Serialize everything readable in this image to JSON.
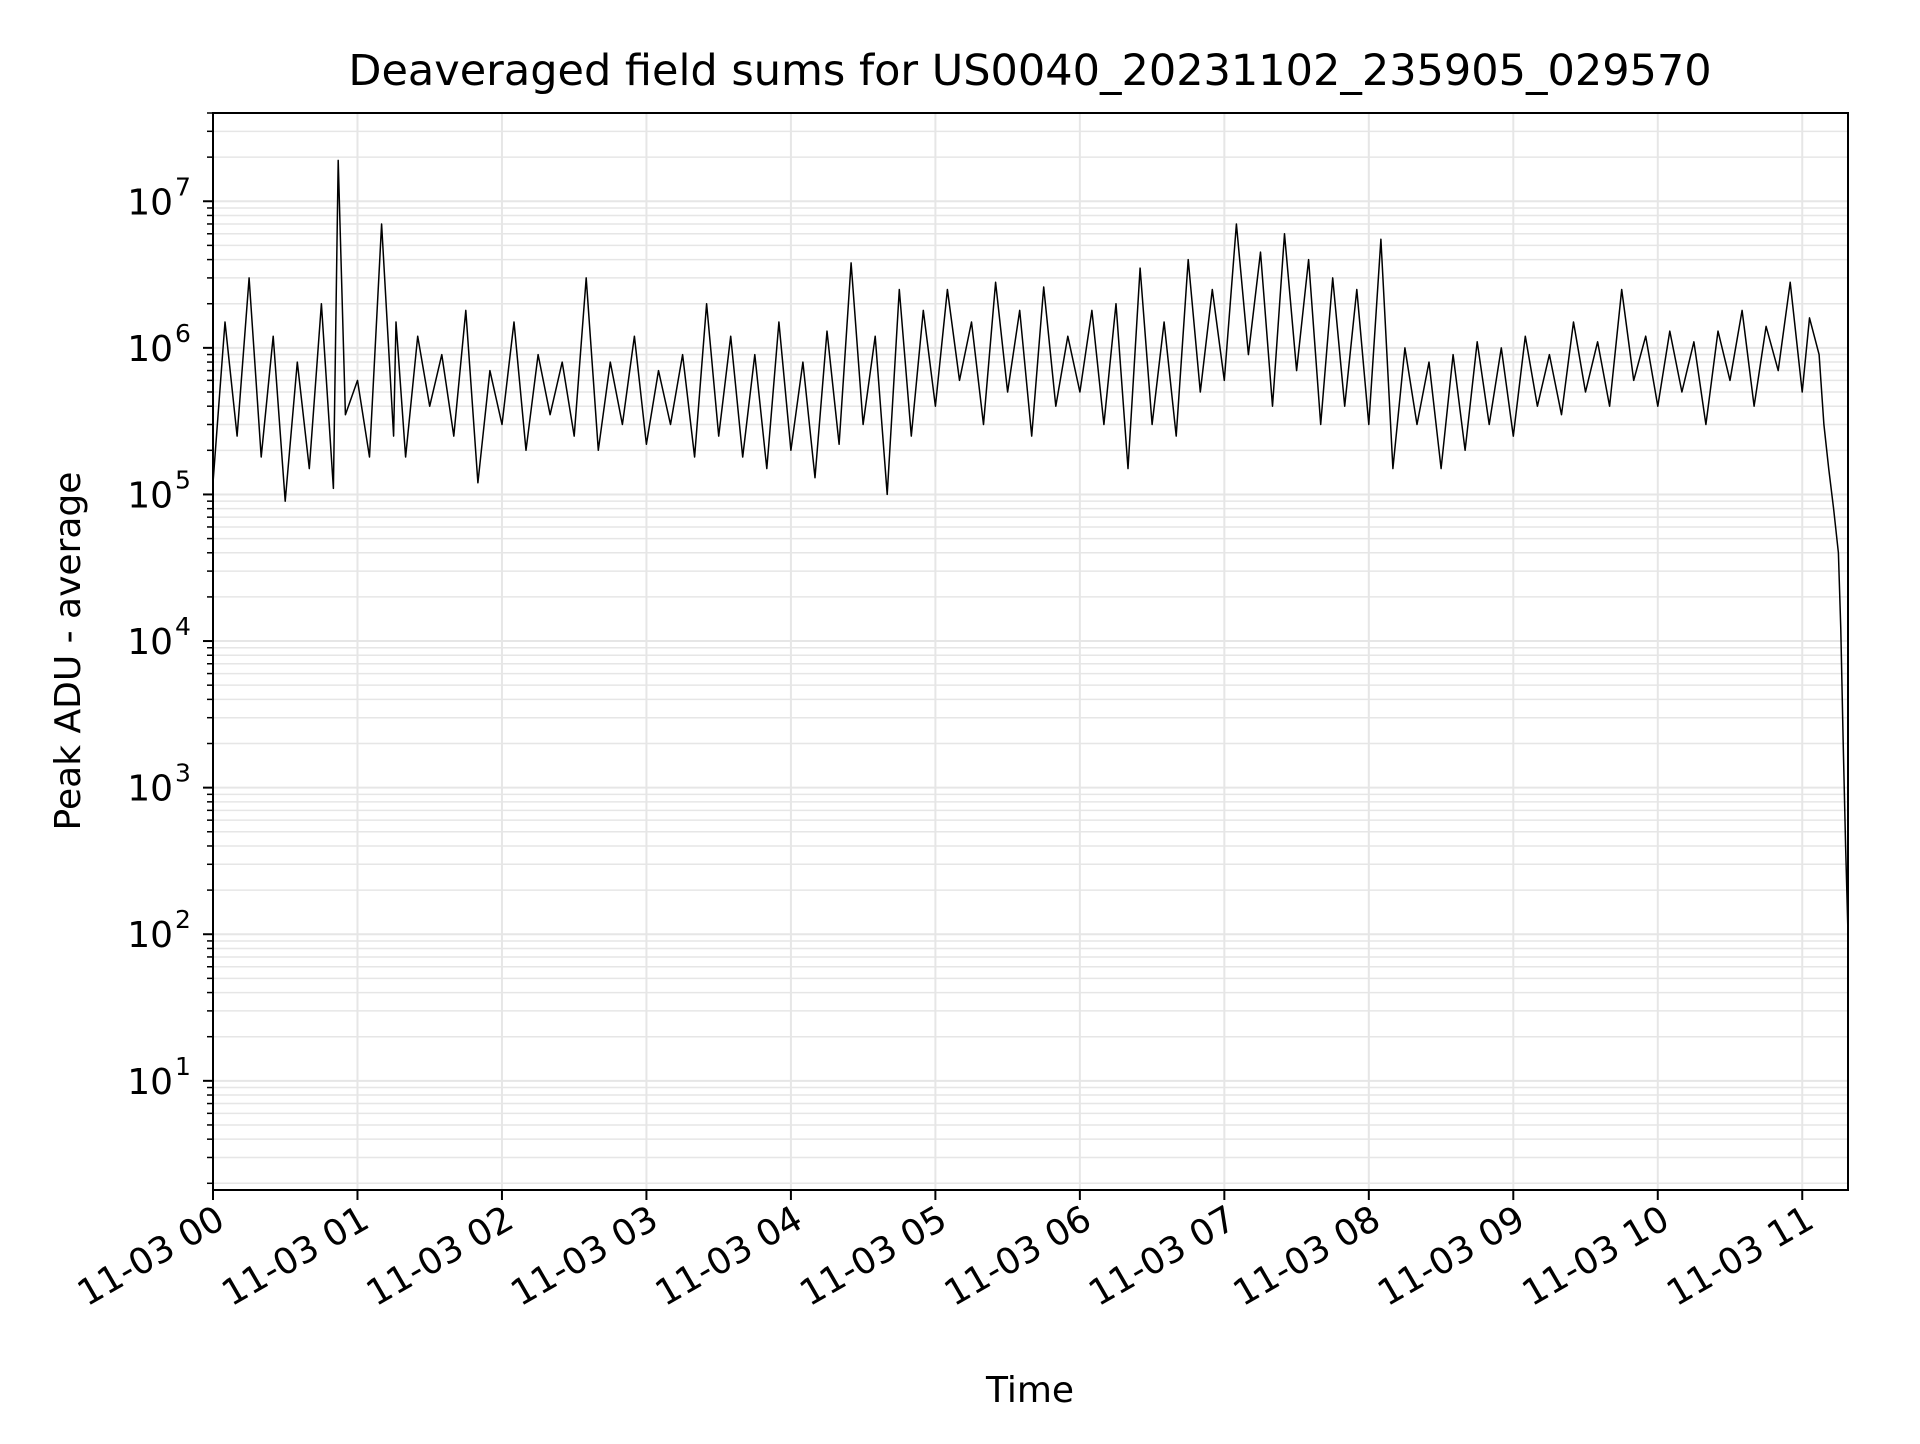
{
  "chart_data": {
    "type": "line",
    "title": "Deaveraged field sums for US0040_20231102_235905_029570",
    "xlabel": "Time",
    "ylabel": "Peak ADU - average",
    "yscale": "log",
    "ylim": [
      1.8,
      40000000
    ],
    "xlim": [
      "2023-11-03 00:00",
      "2023-11-03 11:19"
    ],
    "grid": true,
    "line_color": "#000000",
    "grid_color": "#e6e6e6",
    "x_ticks": [
      {
        "at": "2023-11-03 00:00",
        "label": "11-03 00"
      },
      {
        "at": "2023-11-03 01:00",
        "label": "11-03 01"
      },
      {
        "at": "2023-11-03 02:00",
        "label": "11-03 02"
      },
      {
        "at": "2023-11-03 03:00",
        "label": "11-03 03"
      },
      {
        "at": "2023-11-03 04:00",
        "label": "11-03 04"
      },
      {
        "at": "2023-11-03 05:00",
        "label": "11-03 05"
      },
      {
        "at": "2023-11-03 06:00",
        "label": "11-03 06"
      },
      {
        "at": "2023-11-03 07:00",
        "label": "11-03 07"
      },
      {
        "at": "2023-11-03 08:00",
        "label": "11-03 08"
      },
      {
        "at": "2023-11-03 09:00",
        "label": "11-03 09"
      },
      {
        "at": "2023-11-03 10:00",
        "label": "11-03 10"
      },
      {
        "at": "2023-11-03 11:00",
        "label": "11-03 11"
      }
    ],
    "y_ticks": [
      {
        "value": 10,
        "base": "10",
        "exp": "1"
      },
      {
        "value": 100,
        "base": "10",
        "exp": "2"
      },
      {
        "value": 1000,
        "base": "10",
        "exp": "3"
      },
      {
        "value": 10000,
        "base": "10",
        "exp": "4"
      },
      {
        "value": 100000,
        "base": "10",
        "exp": "5"
      },
      {
        "value": 1000000,
        "base": "10",
        "exp": "6"
      },
      {
        "value": 10000000,
        "base": "10",
        "exp": "7"
      }
    ],
    "series": [
      {
        "x": [
          "00:00",
          "00:05",
          "00:10",
          "00:15",
          "00:20",
          "00:25",
          "00:30",
          "00:35",
          "00:40",
          "00:45",
          "00:50",
          "00:52",
          "00:55",
          "01:00",
          "01:05",
          "01:10",
          "01:15",
          "01:16",
          "01:20",
          "01:25",
          "01:30",
          "01:35",
          "01:40",
          "01:45",
          "01:50",
          "01:55",
          "02:00",
          "02:05",
          "02:10",
          "02:15",
          "02:20",
          "02:25",
          "02:30",
          "02:35",
          "02:40",
          "02:45",
          "02:50",
          "02:55",
          "03:00",
          "03:05",
          "03:10",
          "03:15",
          "03:20",
          "03:25",
          "03:30",
          "03:35",
          "03:40",
          "03:45",
          "03:50",
          "03:55",
          "04:00",
          "04:05",
          "04:10",
          "04:15",
          "04:20",
          "04:25",
          "04:30",
          "04:35",
          "04:40",
          "04:45",
          "04:50",
          "04:55",
          "05:00",
          "05:05",
          "05:10",
          "05:15",
          "05:20",
          "05:25",
          "05:30",
          "05:35",
          "05:40",
          "05:45",
          "05:50",
          "05:55",
          "06:00",
          "06:05",
          "06:10",
          "06:15",
          "06:20",
          "06:25",
          "06:30",
          "06:35",
          "06:40",
          "06:45",
          "06:50",
          "06:55",
          "07:00",
          "07:05",
          "07:10",
          "07:15",
          "07:20",
          "07:25",
          "07:30",
          "07:35",
          "07:40",
          "07:45",
          "07:50",
          "07:55",
          "08:00",
          "08:05",
          "08:10",
          "08:15",
          "08:20",
          "08:25",
          "08:30",
          "08:35",
          "08:40",
          "08:45",
          "08:50",
          "08:55",
          "09:00",
          "09:05",
          "09:10",
          "09:15",
          "09:20",
          "09:25",
          "09:30",
          "09:35",
          "09:40",
          "09:45",
          "09:50",
          "09:55",
          "10:00",
          "10:05",
          "10:10",
          "10:15",
          "10:20",
          "10:25",
          "10:30",
          "10:35",
          "10:40",
          "10:45",
          "10:50",
          "10:55",
          "11:00",
          "11:03",
          "11:05",
          "11:07",
          "11:09",
          "11:11",
          "11:13",
          "11:15",
          "11:16",
          "11:17",
          "11:18",
          "11:19"
        ],
        "values": [
          120000,
          1500000,
          250000,
          3000000,
          180000,
          1200000,
          90000,
          800000,
          150000,
          2000000,
          110000,
          19000000,
          350000,
          600000,
          180000,
          7000000,
          250000,
          1500000,
          180000,
          1200000,
          400000,
          900000,
          250000,
          1800000,
          120000,
          700000,
          300000,
          1500000,
          200000,
          900000,
          350000,
          800000,
          250000,
          3000000,
          200000,
          800000,
          300000,
          1200000,
          220000,
          700000,
          300000,
          900000,
          180000,
          2000000,
          250000,
          1200000,
          180000,
          900000,
          150000,
          1500000,
          200000,
          800000,
          130000,
          1300000,
          220000,
          3800000,
          300000,
          1200000,
          100000,
          2500000,
          250000,
          1800000,
          400000,
          2500000,
          600000,
          1500000,
          300000,
          2800000,
          500000,
          1800000,
          250000,
          2600000,
          400000,
          1200000,
          500000,
          1800000,
          300000,
          2000000,
          150000,
          3500000,
          300000,
          1500000,
          250000,
          4000000,
          500000,
          2500000,
          600000,
          7000000,
          900000,
          4500000,
          400000,
          6000000,
          700000,
          4000000,
          300000,
          3000000,
          400000,
          2500000,
          300000,
          5500000,
          150000,
          1000000,
          300000,
          800000,
          150000,
          900000,
          200000,
          1100000,
          300000,
          1000000,
          250000,
          1200000,
          400000,
          900000,
          350000,
          1500000,
          500000,
          1100000,
          400000,
          2500000,
          600000,
          1200000,
          400000,
          1300000,
          500000,
          1100000,
          300000,
          1300000,
          600000,
          1800000,
          400000,
          1400000,
          700000,
          2800000,
          500000,
          1600000,
          1200000,
          900000,
          300000,
          150000,
          80000,
          40000,
          12000,
          2000,
          400,
          100
        ]
      }
    ]
  }
}
